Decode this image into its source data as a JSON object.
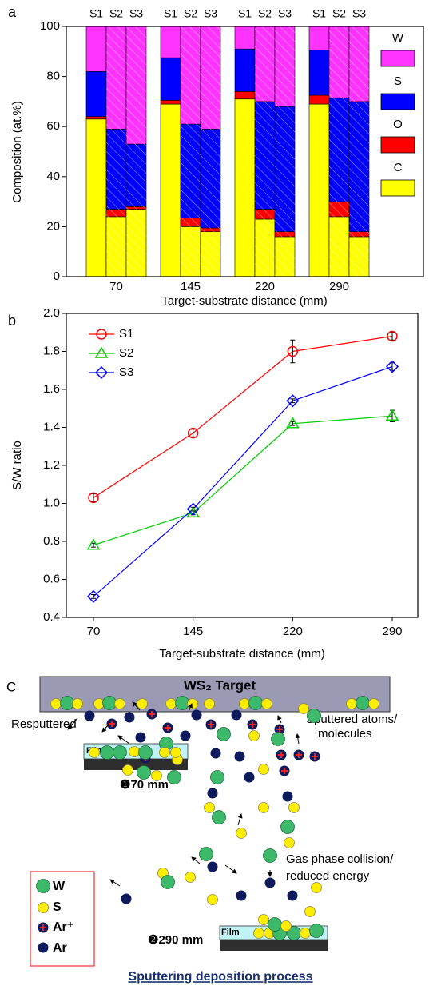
{
  "chart_data": [
    {
      "type": "stacked_bar",
      "panel_label": "a",
      "ylabel": "Composition (at.%)",
      "xlabel": "Target-substrate distance (mm)",
      "categories": [
        "70",
        "145",
        "220",
        "290"
      ],
      "subcategories": [
        "S1",
        "S2",
        "S3"
      ],
      "ylim": [
        0,
        100
      ],
      "yticks": [
        0,
        20,
        40,
        60,
        80,
        100
      ],
      "legend": "right",
      "series": [
        {
          "name": "C",
          "color": "#ffff00",
          "values": [
            [
              63,
              24,
              27
            ],
            [
              69,
              20,
              18
            ],
            [
              71,
              23,
              16
            ],
            [
              69,
              24,
              16
            ]
          ]
        },
        {
          "name": "O",
          "color": "#ff0000",
          "values": [
            [
              1,
              3,
              1
            ],
            [
              1.5,
              3.5,
              1.5
            ],
            [
              3,
              4,
              2
            ],
            [
              3.5,
              6,
              2
            ]
          ]
        },
        {
          "name": "S",
          "color": "#0000ff",
          "values": [
            [
              18,
              32,
              25
            ],
            [
              17,
              37.5,
              39.5
            ],
            [
              17,
              43,
              50
            ],
            [
              18,
              41.5,
              52
            ]
          ]
        },
        {
          "name": "W",
          "color": "#ff33ff",
          "values": [
            [
              18,
              41,
              47
            ],
            [
              12.5,
              39,
              41
            ],
            [
              9,
              30,
              32
            ],
            [
              9.5,
              28.5,
              30
            ]
          ]
        }
      ]
    },
    {
      "type": "line",
      "panel_label": "b",
      "ylabel": "S/W ratio",
      "xlabel": "Target-substrate distance (mm)",
      "categories": [
        "70",
        "145",
        "220",
        "290"
      ],
      "ylim": [
        0.4,
        2.0
      ],
      "yticks": [
        0.4,
        0.6,
        0.8,
        {
          "value": 1.0,
          "label": "1.0"
        },
        1.2,
        1.4,
        1.6,
        1.8,
        {
          "value": 2.0,
          "label": "2.0"
        }
      ],
      "legend": "upper left",
      "series": [
        {
          "name": "S1",
          "color": "#ff0000",
          "marker": "circle",
          "values": [
            1.03,
            1.37,
            1.8,
            1.88
          ],
          "errors": [
            0.02,
            0.02,
            0.06,
            0.02
          ]
        },
        {
          "name": "S2",
          "color": "#00cc00",
          "marker": "triangle",
          "values": [
            0.78,
            0.95,
            1.42,
            1.46
          ],
          "errors": [
            0.01,
            0.01,
            0.01,
            0.03
          ]
        },
        {
          "name": "S3",
          "color": "#0000ff",
          "marker": "diamond",
          "values": [
            0.51,
            0.97,
            1.54,
            1.72
          ],
          "errors": [
            0.01,
            0.01,
            0.01,
            0.02
          ]
        }
      ]
    }
  ],
  "diagram": {
    "panel_label": "C",
    "target_label": "WS₂ Target",
    "sputtered_label": [
      "Sputtered atoms/",
      "molecules"
    ],
    "resputtered_label": "Resputtered",
    "film_label": "Film",
    "distances": [
      "❶70 mm",
      "❷290 mm"
    ],
    "collision_label": [
      "Gas phase collision/",
      "reduced energy"
    ],
    "legend": [
      "W",
      "S",
      "Ar⁺",
      "Ar"
    ],
    "caption": "Sputtering deposition process"
  }
}
